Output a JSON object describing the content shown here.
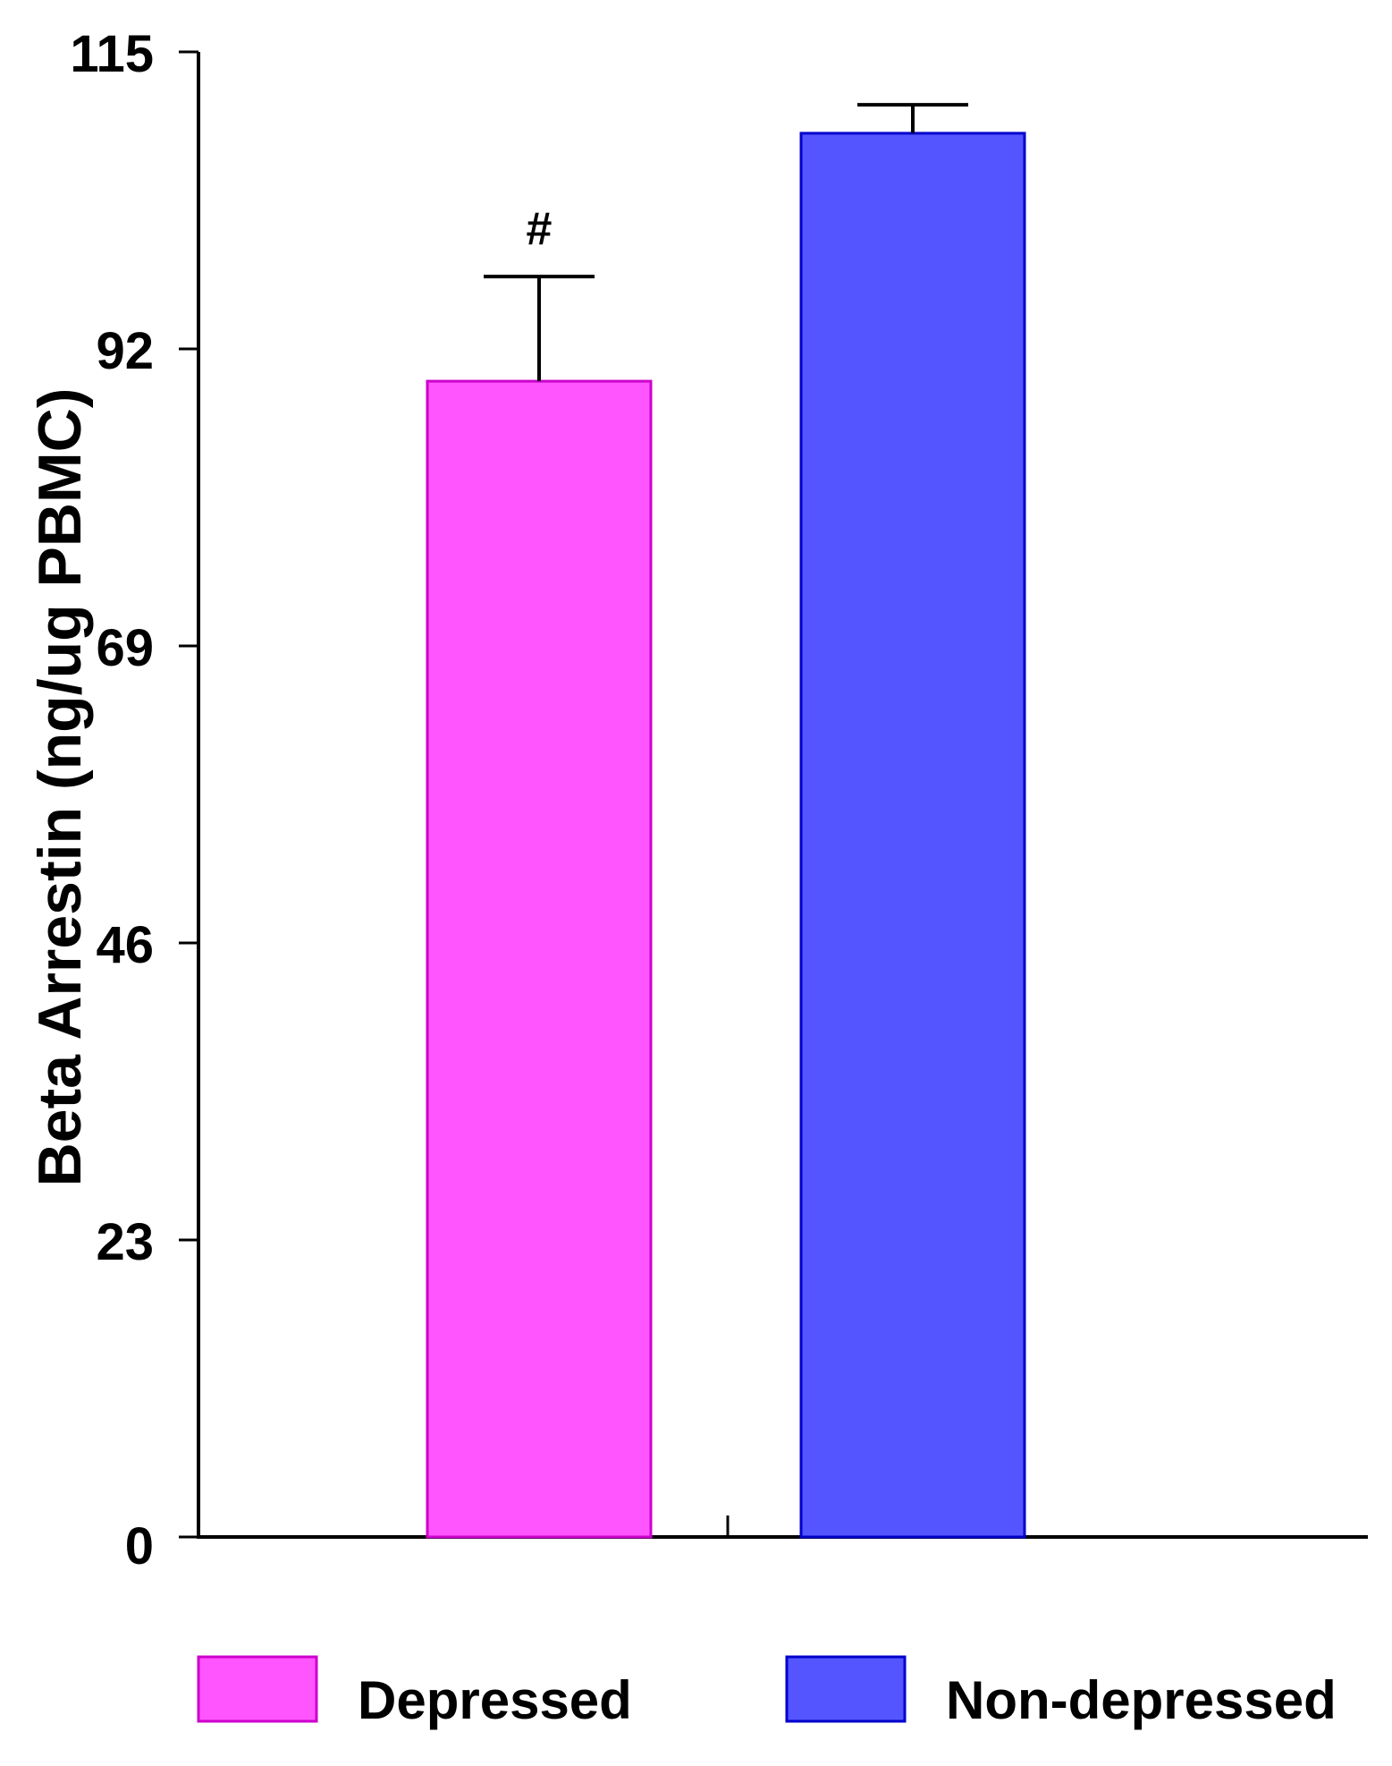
{
  "chart_data": {
    "type": "bar",
    "title": "",
    "xlabel": "",
    "ylabel": "Beta Arrestin (ng/ug PBMC)",
    "ylim": [
      0,
      115
    ],
    "yticks": [
      0,
      23,
      46,
      69,
      92,
      115
    ],
    "categories": [
      "Depressed",
      "Non-depressed"
    ],
    "values": [
      89.5,
      108.7
    ],
    "errors": [
      8.1,
      2.2
    ],
    "colors": [
      "#ff55ff",
      "#5555ff"
    ],
    "edge_colors": [
      "#cc00cc",
      "#0000cc"
    ],
    "annotations": [
      "#",
      ""
    ],
    "legend": {
      "position": "bottom",
      "entries": [
        {
          "label": "Depressed",
          "color": "#ff55ff"
        },
        {
          "label": "Non-depressed",
          "color": "#5555ff"
        }
      ]
    },
    "grid": false
  }
}
